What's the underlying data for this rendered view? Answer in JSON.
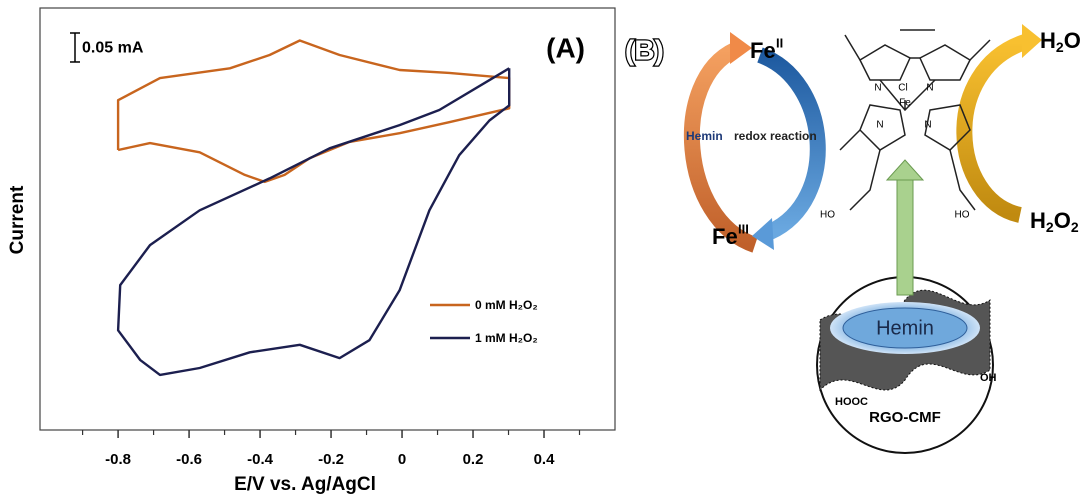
{
  "chart_data": {
    "type": "line",
    "panel_label": "(A)",
    "xlabel": "E/V vs. Ag/AgCl",
    "ylabel": "Current",
    "xlim": [
      -1.02,
      0.6
    ],
    "ylim": [
      0,
      0.728
    ],
    "xticks": [
      -0.8,
      -0.6,
      -0.4,
      -0.2,
      0,
      0.2,
      0.4
    ],
    "minor_xticks": [
      -0.9,
      -0.7,
      -0.5,
      -0.3,
      -0.1,
      0.1,
      0.3,
      0.5
    ],
    "scale_bar": {
      "value": 0.05,
      "label": "0.05 mA"
    },
    "legend": "lower right",
    "series": [
      {
        "name": "0 mM H₂O₂",
        "color": "#c8651e",
        "x": [
          -0.8,
          -0.8,
          -0.682,
          -0.485,
          -0.373,
          -0.288,
          -0.176,
          -0.007,
          0.133,
          0.302,
          0.302,
          0.133,
          -0.007,
          -0.148,
          -0.26,
          -0.331,
          -0.387,
          -0.443,
          -0.57,
          -0.71,
          -0.8
        ],
        "values": [
          0.483,
          0.569,
          0.607,
          0.624,
          0.647,
          0.672,
          0.647,
          0.621,
          0.616,
          0.607,
          0.555,
          0.531,
          0.512,
          0.497,
          0.469,
          0.44,
          0.428,
          0.44,
          0.479,
          0.495,
          0.483
        ]
      },
      {
        "name": "1 mM  H₂O₂",
        "color": "#1c1f4f",
        "x": [
          0.302,
          0.105,
          -0.007,
          -0.204,
          -0.373,
          -0.57,
          -0.71,
          -0.794,
          -0.8,
          -0.738,
          -0.682,
          -0.57,
          -0.429,
          -0.288,
          -0.176,
          -0.092,
          -0.007,
          0.077,
          0.161,
          0.246,
          0.302,
          0.302
        ],
        "values": [
          0.624,
          0.552,
          0.526,
          0.486,
          0.434,
          0.379,
          0.319,
          0.25,
          0.172,
          0.121,
          0.095,
          0.107,
          0.134,
          0.147,
          0.124,
          0.155,
          0.241,
          0.379,
          0.474,
          0.534,
          0.56,
          0.624
        ]
      }
    ]
  },
  "diagram": {
    "panel_label": "(B)",
    "fe2": {
      "base": "Fe",
      "sup": "II"
    },
    "fe3": {
      "base": "Fe",
      "sup": "III"
    },
    "h2o": {
      "base": "H",
      "sub": "2",
      "end": "O"
    },
    "h2o2": {
      "base": "H",
      "sub": "2",
      "end": "O",
      "sub2": "2"
    },
    "reaction": {
      "hemin": "Hemin",
      "rest": "redox reaction"
    },
    "atoms": {
      "cl": "Cl",
      "fe": "Fe",
      "n": "N",
      "ho_left": "HO",
      "ho_right": "HO"
    },
    "hemin": "Hemin",
    "hooc": "HOOC",
    "oh": "OH",
    "support": "RGO-CMF"
  }
}
